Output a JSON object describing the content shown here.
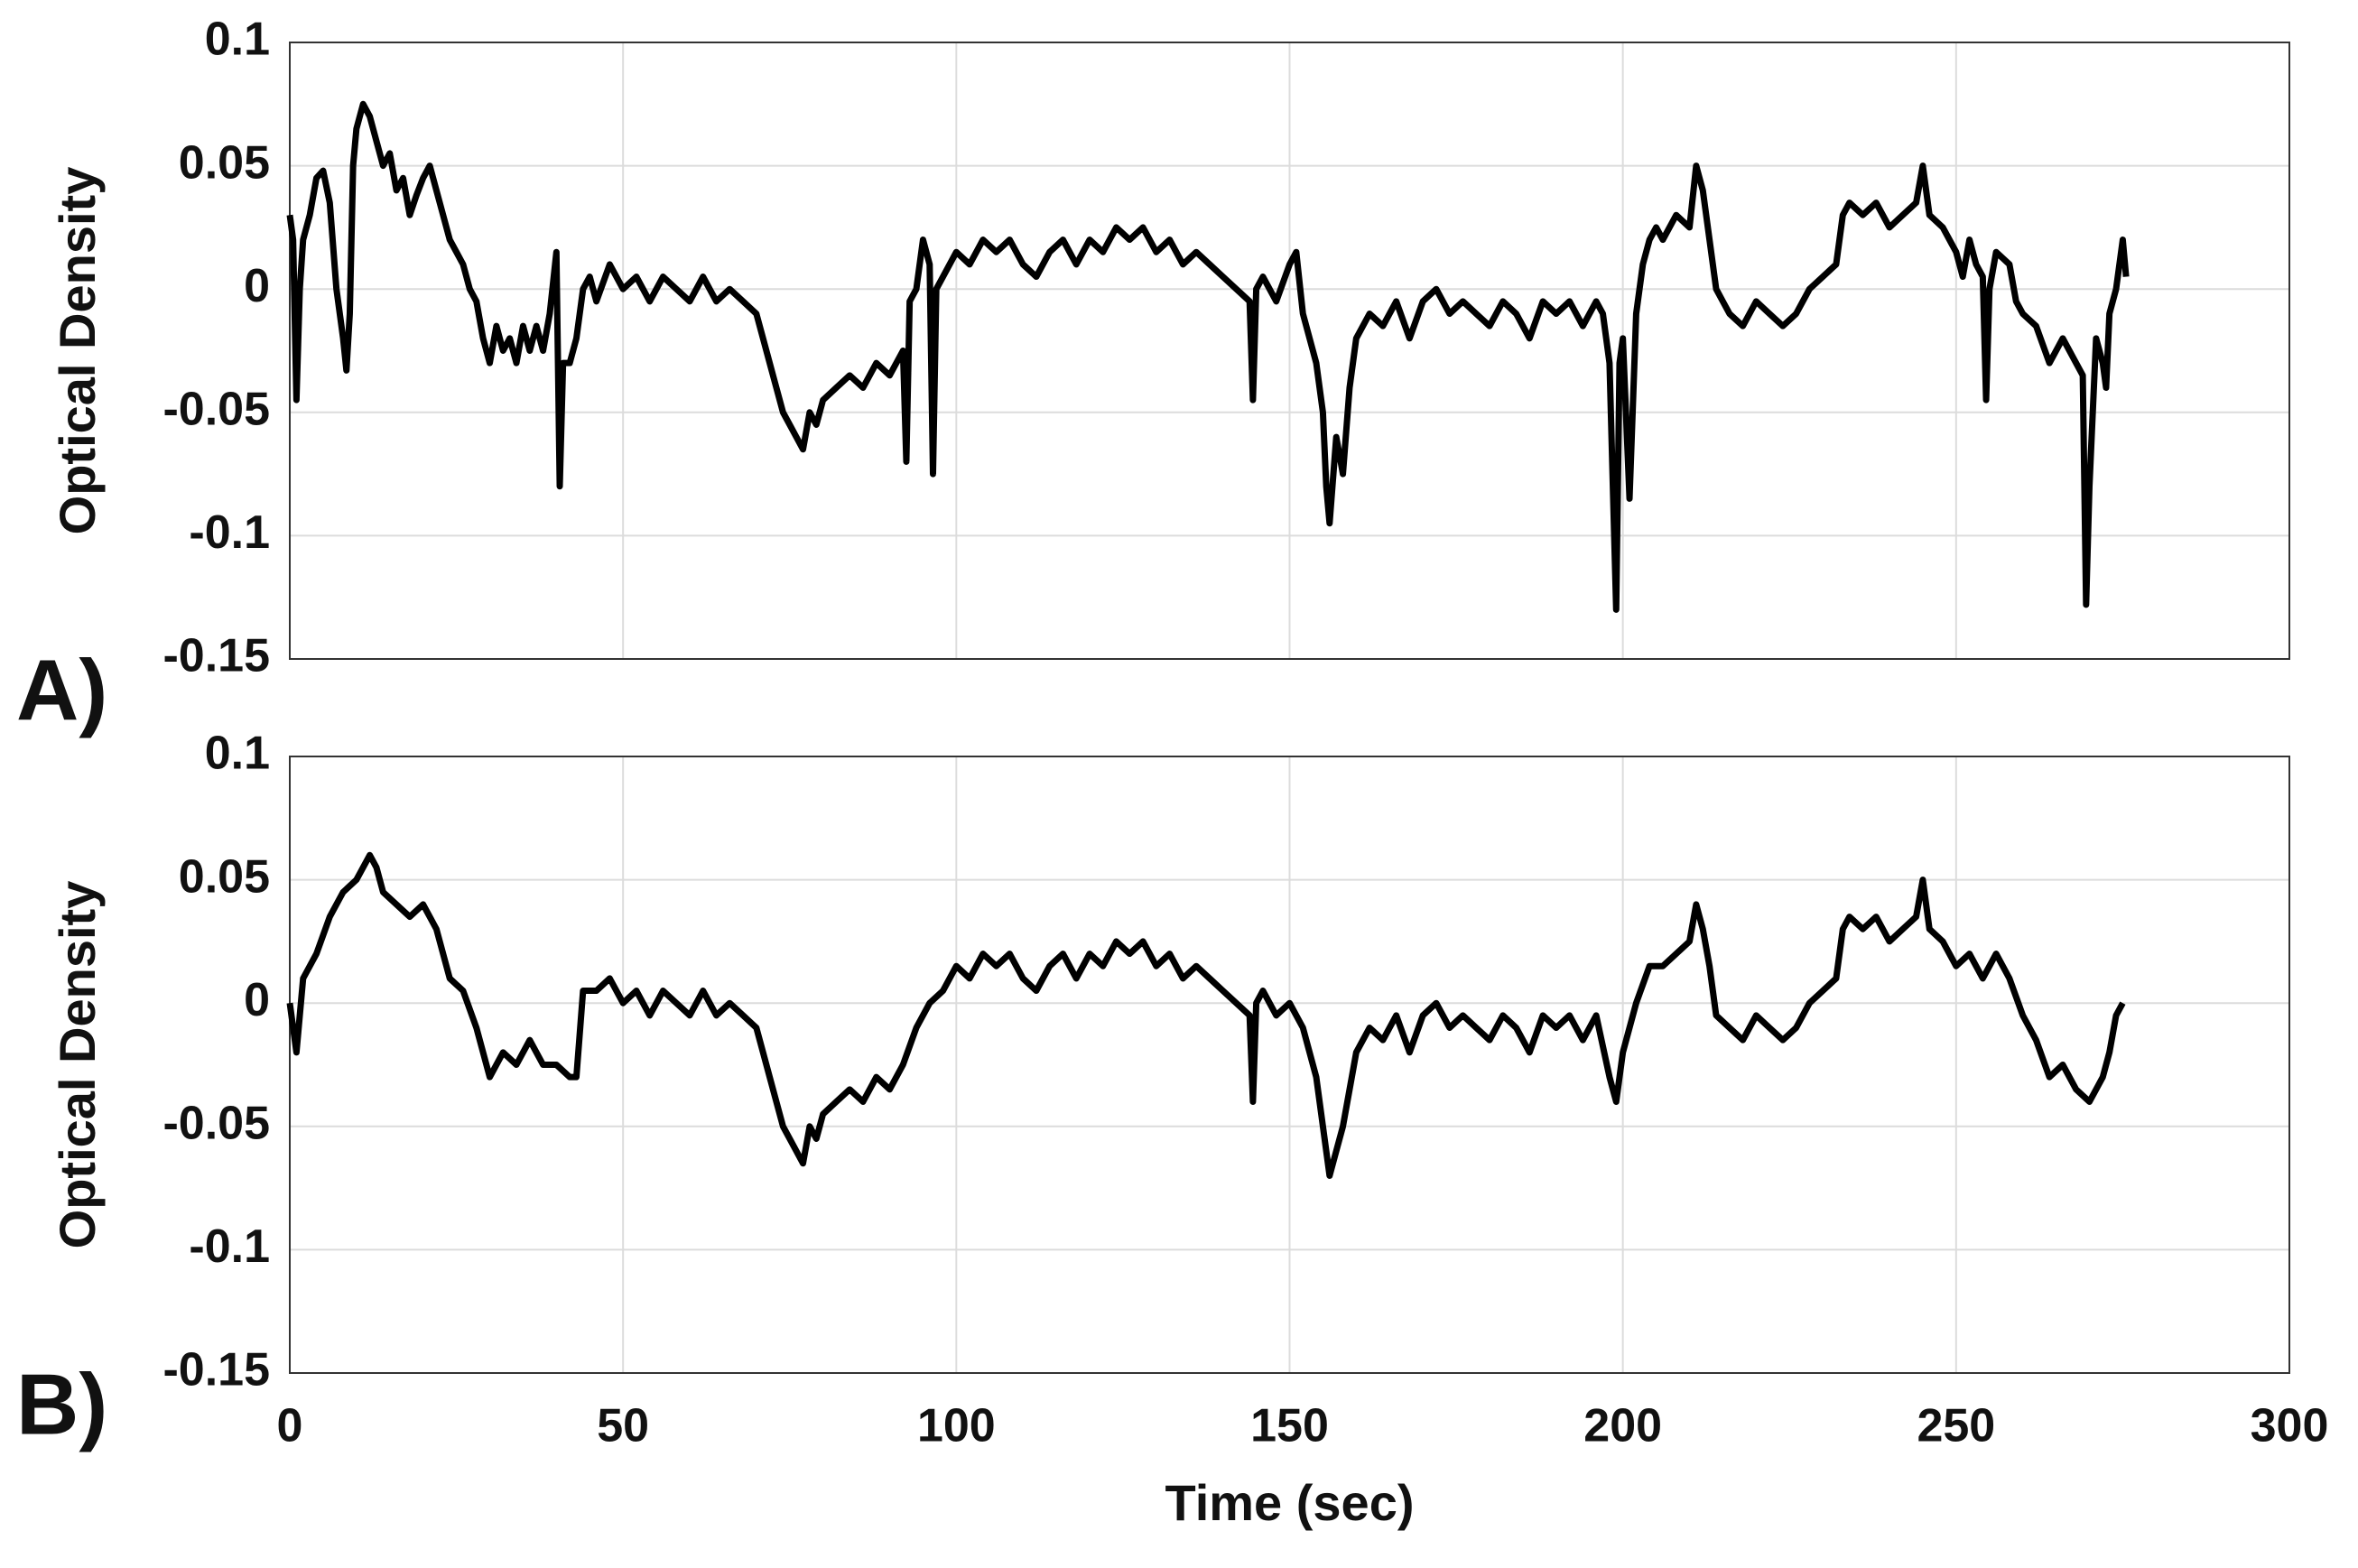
{
  "chart_data": [
    {
      "type": "line",
      "label": "A)",
      "ylabel": "Optical Density",
      "color": "#000000",
      "grid": true,
      "show_xtick_labels": false,
      "xlim": [
        0,
        300
      ],
      "xticks": [
        0,
        50,
        100,
        150,
        200,
        250,
        300
      ],
      "ylim": [
        -0.15,
        0.1
      ],
      "yticks": [
        -0.15,
        -0.1,
        -0.05,
        0,
        0.05,
        0.1
      ],
      "x": [
        0,
        0.5,
        1,
        1.5,
        2,
        3,
        4,
        5,
        6,
        7,
        8,
        8.5,
        9,
        9.5,
        10,
        11,
        12,
        13,
        14,
        15,
        16,
        17,
        18,
        19,
        20,
        21,
        22,
        23,
        24,
        25,
        26,
        27,
        28,
        29,
        30,
        31,
        32,
        33,
        34,
        35,
        36,
        37,
        38,
        39,
        40,
        40.5,
        41,
        42,
        43,
        44,
        45,
        46,
        48,
        50,
        52,
        54,
        56,
        58,
        60,
        62,
        64,
        66,
        68,
        70,
        71,
        72,
        73,
        74,
        75,
        76,
        77,
        78,
        79,
        80,
        82,
        84,
        86,
        88,
        90,
        92,
        92.5,
        93,
        94,
        95,
        96,
        96.5,
        97,
        98,
        100,
        102,
        104,
        106,
        108,
        110,
        112,
        114,
        116,
        118,
        120,
        122,
        124,
        126,
        128,
        130,
        132,
        134,
        136,
        138,
        140,
        142,
        144,
        144.5,
        145,
        146,
        148,
        150,
        151,
        152,
        153,
        154,
        155,
        155.5,
        156,
        157,
        158,
        159,
        160,
        162,
        164,
        166,
        168,
        170,
        172,
        174,
        176,
        178,
        180,
        182,
        184,
        186,
        188,
        190,
        192,
        194,
        196,
        197,
        198,
        199,
        199.5,
        200,
        201,
        202,
        203,
        204,
        205,
        206,
        208,
        210,
        211,
        212,
        213,
        214,
        215,
        216,
        218,
        220,
        222,
        224,
        226,
        228,
        230,
        232,
        233,
        234,
        236,
        238,
        240,
        242,
        244,
        245,
        246,
        248,
        250,
        251,
        252,
        253,
        254,
        254.5,
        255,
        256,
        258,
        259,
        260,
        262,
        264,
        266,
        268,
        269,
        269.5,
        270,
        271,
        272,
        272.5,
        273,
        274,
        275,
        275.5
      ],
      "values": [
        0.03,
        0.02,
        -0.045,
        0.0,
        0.02,
        0.03,
        0.045,
        0.048,
        0.035,
        0.0,
        -0.02,
        -0.033,
        -0.01,
        0.05,
        0.065,
        0.075,
        0.07,
        0.06,
        0.05,
        0.055,
        0.04,
        0.045,
        0.03,
        0.038,
        0.045,
        0.05,
        0.04,
        0.03,
        0.02,
        0.015,
        0.01,
        0.0,
        -0.005,
        -0.02,
        -0.03,
        -0.015,
        -0.025,
        -0.02,
        -0.03,
        -0.015,
        -0.025,
        -0.015,
        -0.025,
        -0.01,
        0.015,
        -0.08,
        -0.03,
        -0.03,
        -0.02,
        0.0,
        0.005,
        -0.005,
        0.01,
        0.0,
        0.005,
        -0.005,
        0.005,
        0.0,
        -0.005,
        0.005,
        -0.005,
        0.0,
        -0.005,
        -0.01,
        -0.02,
        -0.03,
        -0.04,
        -0.05,
        -0.055,
        -0.06,
        -0.065,
        -0.05,
        -0.055,
        -0.045,
        -0.04,
        -0.035,
        -0.04,
        -0.03,
        -0.035,
        -0.025,
        -0.07,
        -0.005,
        0.0,
        0.02,
        0.01,
        -0.075,
        0.0,
        0.005,
        0.015,
        0.01,
        0.02,
        0.015,
        0.02,
        0.01,
        0.005,
        0.015,
        0.02,
        0.01,
        0.02,
        0.015,
        0.025,
        0.02,
        0.025,
        0.015,
        0.02,
        0.01,
        0.015,
        0.01,
        0.005,
        0.0,
        -0.005,
        -0.045,
        0.0,
        0.005,
        -0.005,
        0.01,
        0.015,
        -0.01,
        -0.02,
        -0.03,
        -0.05,
        -0.08,
        -0.095,
        -0.06,
        -0.075,
        -0.04,
        -0.02,
        -0.01,
        -0.015,
        -0.005,
        -0.02,
        -0.005,
        0.0,
        -0.01,
        -0.005,
        -0.01,
        -0.015,
        -0.005,
        -0.01,
        -0.02,
        -0.005,
        -0.01,
        -0.005,
        -0.015,
        -0.005,
        -0.01,
        -0.03,
        -0.13,
        -0.03,
        -0.02,
        -0.085,
        -0.01,
        0.01,
        0.02,
        0.025,
        0.02,
        0.03,
        0.025,
        0.05,
        0.04,
        0.02,
        0.0,
        -0.005,
        -0.01,
        -0.015,
        -0.005,
        -0.01,
        -0.015,
        -0.01,
        0.0,
        0.005,
        0.01,
        0.03,
        0.035,
        0.03,
        0.035,
        0.025,
        0.03,
        0.035,
        0.05,
        0.03,
        0.025,
        0.015,
        0.005,
        0.02,
        0.01,
        0.005,
        -0.045,
        0.0,
        0.015,
        0.01,
        -0.005,
        -0.01,
        -0.015,
        -0.03,
        -0.02,
        -0.03,
        -0.035,
        -0.128,
        -0.08,
        -0.02,
        -0.03,
        -0.04,
        -0.01,
        0.0,
        0.02,
        0.005
      ]
    },
    {
      "type": "line",
      "label": "B)",
      "ylabel": "Optical Density",
      "xlabel": "Time (sec)",
      "color": "#000000",
      "grid": true,
      "show_xtick_labels": true,
      "xlim": [
        0,
        300
      ],
      "xticks": [
        0,
        50,
        100,
        150,
        200,
        250,
        300
      ],
      "ylim": [
        -0.15,
        0.1
      ],
      "yticks": [
        -0.15,
        -0.1,
        -0.05,
        0,
        0.05,
        0.1
      ],
      "x": [
        0,
        1,
        2,
        4,
        6,
        8,
        10,
        12,
        13,
        14,
        16,
        18,
        20,
        22,
        24,
        26,
        28,
        30,
        32,
        34,
        36,
        38,
        40,
        42,
        43,
        44,
        46,
        48,
        50,
        52,
        54,
        56,
        58,
        60,
        62,
        64,
        66,
        68,
        70,
        71,
        72,
        73,
        74,
        75,
        76,
        77,
        78,
        79,
        80,
        82,
        84,
        86,
        88,
        90,
        92,
        94,
        96,
        98,
        100,
        102,
        104,
        106,
        108,
        110,
        112,
        114,
        116,
        118,
        120,
        122,
        124,
        126,
        128,
        130,
        132,
        134,
        136,
        138,
        140,
        142,
        144,
        144.5,
        145,
        146,
        148,
        150,
        152,
        154,
        155,
        156,
        157,
        158,
        159,
        160,
        162,
        164,
        166,
        168,
        170,
        172,
        174,
        176,
        178,
        180,
        182,
        184,
        186,
        188,
        190,
        192,
        194,
        196,
        198,
        199,
        200,
        202,
        204,
        206,
        208,
        210,
        211,
        212,
        213,
        214,
        216,
        218,
        220,
        222,
        224,
        226,
        228,
        230,
        232,
        233,
        234,
        236,
        238,
        240,
        242,
        244,
        245,
        246,
        248,
        250,
        252,
        254,
        256,
        258,
        260,
        262,
        264,
        266,
        268,
        270,
        272,
        273,
        274,
        275
      ],
      "values": [
        0.0,
        -0.02,
        0.01,
        0.02,
        0.035,
        0.045,
        0.05,
        0.06,
        0.055,
        0.045,
        0.04,
        0.035,
        0.04,
        0.03,
        0.01,
        0.005,
        -0.01,
        -0.03,
        -0.02,
        -0.025,
        -0.015,
        -0.025,
        -0.025,
        -0.03,
        -0.03,
        0.005,
        0.005,
        0.01,
        0.0,
        0.005,
        -0.005,
        0.005,
        0.0,
        -0.005,
        0.005,
        -0.005,
        0.0,
        -0.005,
        -0.01,
        -0.02,
        -0.03,
        -0.04,
        -0.05,
        -0.055,
        -0.06,
        -0.065,
        -0.05,
        -0.055,
        -0.045,
        -0.04,
        -0.035,
        -0.04,
        -0.03,
        -0.035,
        -0.025,
        -0.01,
        0.0,
        0.005,
        0.015,
        0.01,
        0.02,
        0.015,
        0.02,
        0.01,
        0.005,
        0.015,
        0.02,
        0.01,
        0.02,
        0.015,
        0.025,
        0.02,
        0.025,
        0.015,
        0.02,
        0.01,
        0.015,
        0.01,
        0.005,
        0.0,
        -0.005,
        -0.04,
        0.0,
        0.005,
        -0.005,
        0.0,
        -0.01,
        -0.03,
        -0.05,
        -0.07,
        -0.06,
        -0.05,
        -0.035,
        -0.02,
        -0.01,
        -0.015,
        -0.005,
        -0.02,
        -0.005,
        0.0,
        -0.01,
        -0.005,
        -0.01,
        -0.015,
        -0.005,
        -0.01,
        -0.02,
        -0.005,
        -0.01,
        -0.005,
        -0.015,
        -0.005,
        -0.03,
        -0.04,
        -0.02,
        0.0,
        0.015,
        0.015,
        0.02,
        0.025,
        0.04,
        0.03,
        0.015,
        -0.005,
        -0.01,
        -0.015,
        -0.005,
        -0.01,
        -0.015,
        -0.01,
        0.0,
        0.005,
        0.01,
        0.03,
        0.035,
        0.03,
        0.035,
        0.025,
        0.03,
        0.035,
        0.05,
        0.03,
        0.025,
        0.015,
        0.02,
        0.01,
        0.02,
        0.01,
        -0.005,
        -0.015,
        -0.03,
        -0.025,
        -0.035,
        -0.04,
        -0.03,
        -0.02,
        -0.005,
        0.0
      ]
    }
  ]
}
